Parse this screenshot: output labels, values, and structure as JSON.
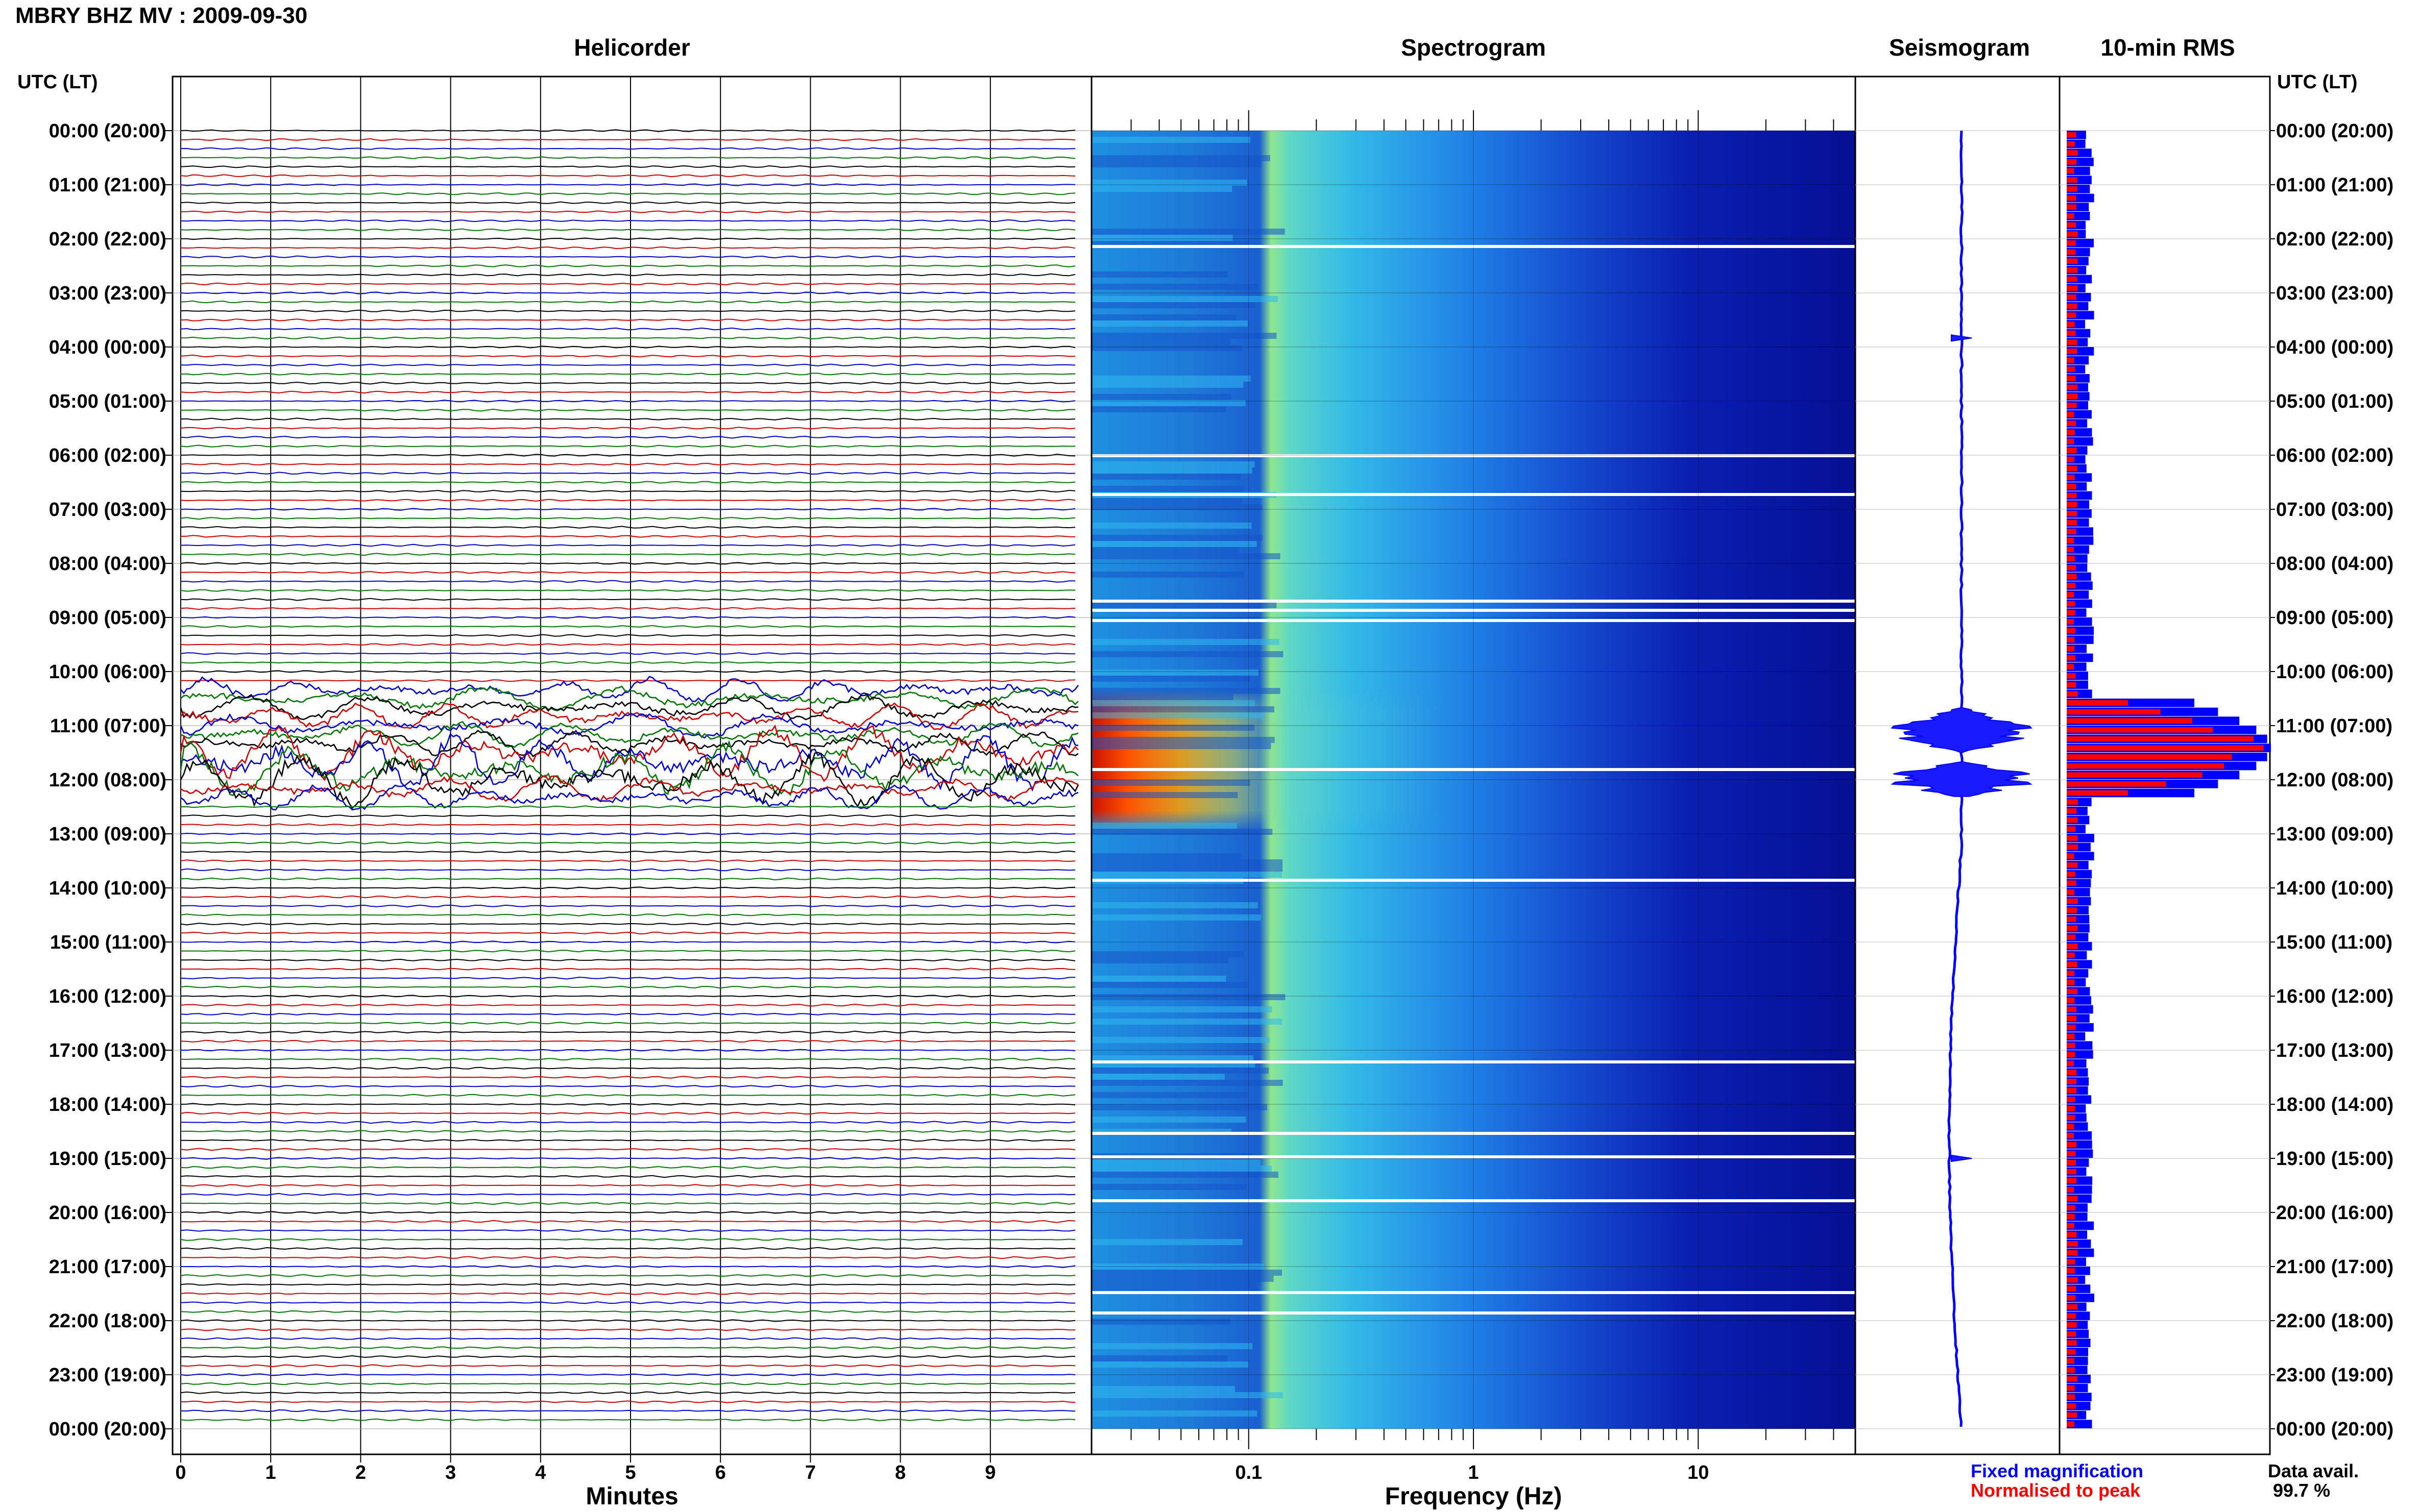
{
  "header": {
    "title": "MBRY BHZ MV : 2009-09-30",
    "utc_header": "UTC (LT)"
  },
  "panels": {
    "helicorder": "Helicorder",
    "spectrogram": "Spectrogram",
    "seismogram": "Seismogram",
    "rms": "10-min RMS"
  },
  "axes": {
    "minutes_label": "Minutes",
    "frequency_label": "Frequency (Hz)"
  },
  "legend": {
    "fixed": "Fixed magnification",
    "normalised": "Normalised to peak",
    "fixed_color": "#0000ff",
    "normalised_color": "#ff0000",
    "data_avail_label": "Data avail.",
    "data_avail_value": "99.7 %"
  },
  "colors": {
    "trace_cycle": [
      "#000000",
      "#cc0000",
      "#0000cc",
      "#007700"
    ],
    "spectrogram_low": "#00008b",
    "spectrogram_high": "#8b0000"
  },
  "chart_data": [
    {
      "type": "line",
      "title": "Helicorder",
      "xlabel": "Minutes",
      "xlim": [
        0,
        10
      ],
      "x_ticks": [
        "0",
        "1",
        "2",
        "3",
        "4",
        "5",
        "6",
        "7",
        "8",
        "9"
      ],
      "y_ticks": [
        "00:00 (20:00)",
        "01:00 (21:00)",
        "02:00 (22:00)",
        "03:00 (23:00)",
        "04:00 (00:00)",
        "05:00 (01:00)",
        "06:00 (02:00)",
        "07:00 (03:00)",
        "08:00 (04:00)",
        "09:00 (05:00)",
        "10:00 (06:00)",
        "11:00 (07:00)",
        "12:00 (08:00)",
        "13:00 (09:00)",
        "14:00 (10:00)",
        "15:00 (11:00)",
        "16:00 (12:00)",
        "17:00 (13:00)",
        "18:00 (14:00)",
        "19:00 (15:00)",
        "20:00 (16:00)",
        "21:00 (17:00)",
        "22:00 (18:00)",
        "23:00 (19:00)",
        "00:00 (20:00)"
      ],
      "trace_count": 144,
      "high_activity_window_utc": [
        "10:30",
        "12:10"
      ]
    },
    {
      "type": "heatmap",
      "title": "Spectrogram",
      "xlabel": "Frequency (Hz)",
      "xscale": "log",
      "xlim": [
        0.02,
        50
      ],
      "x_ticks": [
        "0.1",
        "1",
        "10"
      ],
      "peak_window_utc": [
        "11:00",
        "12:30"
      ],
      "peak_frequency_band_hz": [
        0.02,
        0.08
      ]
    },
    {
      "type": "line",
      "title": "Seismogram",
      "burst_windows_utc": [
        [
          "10:40",
          "11:30"
        ],
        [
          "11:40",
          "12:20"
        ]
      ],
      "minor_events_utc": [
        "03:50",
        "19:00"
      ]
    },
    {
      "type": "bar",
      "title": "10-min RMS",
      "orientation": "horizontal",
      "series": [
        {
          "name": "Fixed magnification",
          "color": "#0000ff"
        },
        {
          "name": "Normalised to peak",
          "color": "#ff0000"
        }
      ],
      "peak_window_utc": [
        "10:30",
        "12:10"
      ]
    }
  ]
}
